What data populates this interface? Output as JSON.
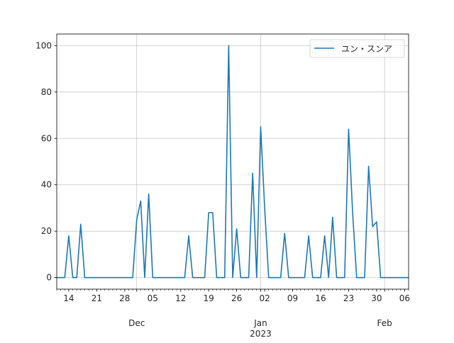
{
  "chart_data": {
    "type": "line",
    "title": "",
    "xlabel": "",
    "ylabel": "",
    "ylim": [
      -5,
      105
    ],
    "xlim": [
      "2022-11-11",
      "2023-02-07"
    ],
    "grid": true,
    "legend_placement": "top-right",
    "yticks": [
      0,
      20,
      40,
      60,
      80,
      100
    ],
    "xticks_major": [
      {
        "date": "2022-11-14",
        "label": "14"
      },
      {
        "date": "2022-11-21",
        "label": "21"
      },
      {
        "date": "2022-11-28",
        "label": "28"
      },
      {
        "date": "2022-12-05",
        "label": "05"
      },
      {
        "date": "2022-12-12",
        "label": "12"
      },
      {
        "date": "2022-12-19",
        "label": "19"
      },
      {
        "date": "2022-12-26",
        "label": "26"
      },
      {
        "date": "2023-01-02",
        "label": "02"
      },
      {
        "date": "2023-01-09",
        "label": "09"
      },
      {
        "date": "2023-01-16",
        "label": "16"
      },
      {
        "date": "2023-01-23",
        "label": "23"
      },
      {
        "date": "2023-01-30",
        "label": "30"
      },
      {
        "date": "2023-02-06",
        "label": "06"
      }
    ],
    "xticks_month": [
      {
        "date": "2022-12-01",
        "label": "Dec",
        "sub": ""
      },
      {
        "date": "2023-01-01",
        "label": "Jan",
        "sub": "2023"
      },
      {
        "date": "2023-02-01",
        "label": "Feb",
        "sub": ""
      }
    ],
    "series": [
      {
        "name": "ユン・スンア",
        "color": "#1f77b4",
        "x": [
          "2022-11-11",
          "2022-11-12",
          "2022-11-13",
          "2022-11-14",
          "2022-11-15",
          "2022-11-16",
          "2022-11-17",
          "2022-11-18",
          "2022-11-19",
          "2022-11-20",
          "2022-11-21",
          "2022-11-22",
          "2022-11-23",
          "2022-11-24",
          "2022-11-25",
          "2022-11-26",
          "2022-11-27",
          "2022-11-28",
          "2022-11-29",
          "2022-11-30",
          "2022-12-01",
          "2022-12-02",
          "2022-12-03",
          "2022-12-04",
          "2022-12-05",
          "2022-12-06",
          "2022-12-07",
          "2022-12-08",
          "2022-12-09",
          "2022-12-10",
          "2022-12-11",
          "2022-12-12",
          "2022-12-13",
          "2022-12-14",
          "2022-12-15",
          "2022-12-16",
          "2022-12-17",
          "2022-12-18",
          "2022-12-19",
          "2022-12-20",
          "2022-12-21",
          "2022-12-22",
          "2022-12-23",
          "2022-12-24",
          "2022-12-25",
          "2022-12-26",
          "2022-12-27",
          "2022-12-28",
          "2022-12-29",
          "2022-12-30",
          "2022-12-31",
          "2023-01-01",
          "2023-01-02",
          "2023-01-03",
          "2023-01-04",
          "2023-01-05",
          "2023-01-06",
          "2023-01-07",
          "2023-01-08",
          "2023-01-09",
          "2023-01-10",
          "2023-01-11",
          "2023-01-12",
          "2023-01-13",
          "2023-01-14",
          "2023-01-15",
          "2023-01-16",
          "2023-01-17",
          "2023-01-18",
          "2023-01-19",
          "2023-01-20",
          "2023-01-21",
          "2023-01-22",
          "2023-01-23",
          "2023-01-24",
          "2023-01-25",
          "2023-01-26",
          "2023-01-27",
          "2023-01-28",
          "2023-01-29",
          "2023-01-30",
          "2023-01-31",
          "2023-02-01",
          "2023-02-02",
          "2023-02-03",
          "2023-02-04",
          "2023-02-05",
          "2023-02-06",
          "2023-02-07"
        ],
        "values": [
          0,
          0,
          0,
          18,
          0,
          0,
          23,
          0,
          0,
          0,
          0,
          0,
          0,
          0,
          0,
          0,
          0,
          0,
          0,
          0,
          25,
          33,
          0,
          36,
          0,
          0,
          0,
          0,
          0,
          0,
          0,
          0,
          0,
          18,
          0,
          0,
          0,
          0,
          28,
          28,
          0,
          0,
          0,
          100,
          0,
          21,
          0,
          0,
          0,
          45,
          0,
          65,
          30,
          0,
          0,
          0,
          0,
          19,
          0,
          0,
          0,
          0,
          0,
          18,
          0,
          0,
          0,
          18,
          0,
          26,
          0,
          0,
          0,
          64,
          28,
          0,
          0,
          0,
          48,
          22,
          24,
          0,
          0,
          0,
          0,
          0,
          0,
          0,
          0
        ]
      }
    ]
  }
}
